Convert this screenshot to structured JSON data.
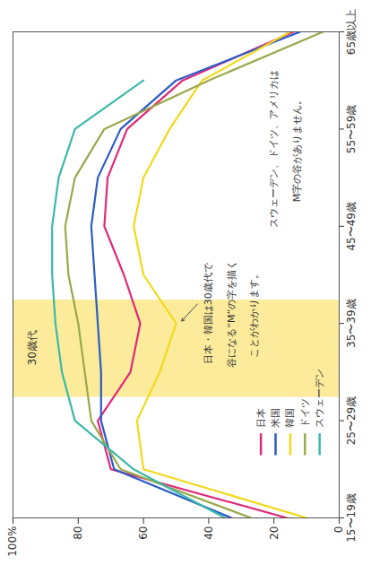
{
  "chart_data": {
    "type": "line",
    "categories": [
      "15〜19歳",
      null,
      "25〜29歳",
      null,
      "35〜39歳",
      null,
      "45〜49歳",
      null,
      "55〜59歳",
      null,
      "65歳以上"
    ],
    "series": [
      {
        "name": "日本",
        "color": "#e0287a",
        "values": [
          16,
          70,
          74,
          64,
          61,
          66,
          72,
          71,
          65,
          48,
          14
        ]
      },
      {
        "name": "米国",
        "color": "#2a5cc8",
        "values": [
          33,
          69,
          73,
          73,
          74,
          75,
          76,
          74,
          67,
          50,
          12
        ]
      },
      {
        "name": "韓国",
        "color": "#f2d91a",
        "values": [
          10,
          60,
          62,
          55,
          50,
          60,
          63,
          60,
          52,
          42,
          15
        ]
      },
      {
        "name": "ドイツ",
        "color": "#9aa84a",
        "values": [
          27,
          67,
          76,
          78,
          80,
          83,
          84,
          81,
          72,
          40,
          5
        ]
      },
      {
        "name": "スウェーデン",
        "color": "#3bb8a8",
        "values": [
          35,
          63,
          81,
          85,
          87,
          88,
          88,
          86,
          81,
          60,
          null
        ]
      }
    ],
    "ylim": [
      0,
      100
    ],
    "yticks": [
      0,
      20,
      40,
      60,
      80,
      {
        "value": 100,
        "label": "100%"
      }
    ],
    "grid": false,
    "legend": "bottom-left",
    "highlight": {
      "label": "30歳代"
    },
    "annotations": [
      {
        "lines": [
          "日本・韓国は30歳代で",
          "谷になる“M”の字を描く",
          "ことがわかります。"
        ]
      },
      {
        "lines": [
          "スウェーデン、ドイツ、アメリカは",
          "M字の谷がありません。"
        ]
      }
    ]
  }
}
